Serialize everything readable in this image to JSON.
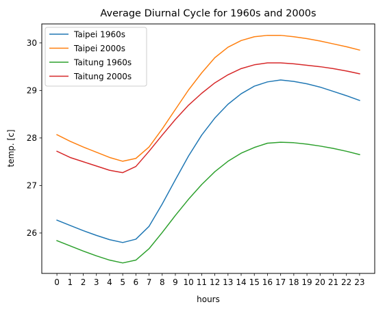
{
  "chart_data": {
    "type": "line",
    "title": "Average Diurnal Cycle for 1960s and 2000s",
    "xlabel": "hours",
    "ylabel": "temp. [c]",
    "x": [
      0,
      1,
      2,
      3,
      4,
      5,
      6,
      7,
      8,
      9,
      10,
      11,
      12,
      13,
      14,
      15,
      16,
      17,
      18,
      19,
      20,
      21,
      22,
      23
    ],
    "xticks": [
      0,
      1,
      2,
      3,
      4,
      5,
      6,
      7,
      8,
      9,
      10,
      11,
      12,
      13,
      14,
      15,
      16,
      17,
      18,
      19,
      20,
      21,
      22,
      23
    ],
    "yticks": [
      26,
      27,
      28,
      29,
      30
    ],
    "xlim": [
      -1.15,
      24.15
    ],
    "ylim": [
      25.15,
      30.4
    ],
    "grid": false,
    "legend": "top-left",
    "series": [
      {
        "name": "Taipei 1960s",
        "color": "#1f77b4",
        "values": [
          26.27,
          26.16,
          26.05,
          25.95,
          25.86,
          25.8,
          25.87,
          26.14,
          26.61,
          27.12,
          27.62,
          28.06,
          28.42,
          28.71,
          28.93,
          29.09,
          29.18,
          29.22,
          29.19,
          29.14,
          29.07,
          28.98,
          28.89,
          28.79
        ]
      },
      {
        "name": "Taipei 2000s",
        "color": "#ff7f0e",
        "values": [
          28.07,
          27.93,
          27.81,
          27.7,
          27.59,
          27.51,
          27.57,
          27.81,
          28.19,
          28.6,
          29.01,
          29.37,
          29.69,
          29.91,
          30.05,
          30.13,
          30.16,
          30.16,
          30.13,
          30.09,
          30.04,
          29.98,
          29.92,
          29.85
        ]
      },
      {
        "name": "Taitung 1960s",
        "color": "#2ca02c",
        "values": [
          25.84,
          25.73,
          25.62,
          25.52,
          25.43,
          25.37,
          25.43,
          25.67,
          26.01,
          26.37,
          26.71,
          27.02,
          27.29,
          27.51,
          27.68,
          27.8,
          27.89,
          27.91,
          27.9,
          27.87,
          27.83,
          27.78,
          27.72,
          27.65
        ]
      },
      {
        "name": "Taitung 2000s",
        "color": "#d62728",
        "values": [
          27.72,
          27.59,
          27.5,
          27.41,
          27.32,
          27.27,
          27.4,
          27.72,
          28.06,
          28.39,
          28.69,
          28.94,
          29.16,
          29.33,
          29.46,
          29.54,
          29.58,
          29.58,
          29.56,
          29.53,
          29.5,
          29.46,
          29.41,
          29.35
        ]
      }
    ]
  }
}
